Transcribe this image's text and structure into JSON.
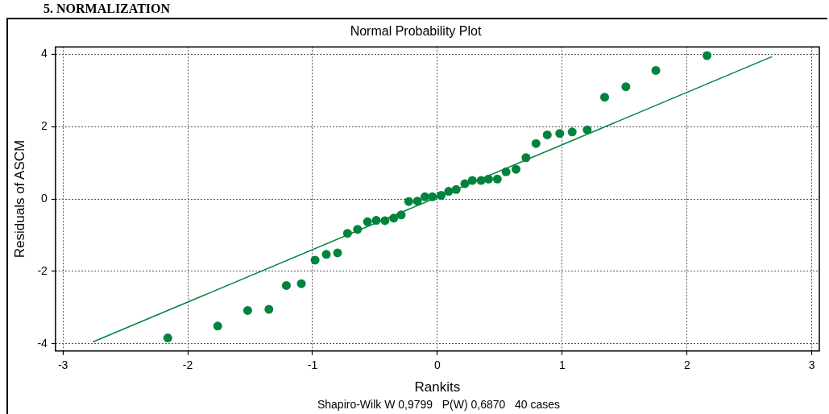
{
  "chart_data": {
    "type": "scatter",
    "title": "Normal Probability Plot",
    "xlabel": "Rankits",
    "ylabel": "Residuals of ASCM",
    "annotations": [
      "5. NORMALIZATION",
      "Shapiro-Wilk W 0,9799   P(W) 0,6870   40 cases"
    ],
    "xlim": [
      -3.06,
      3.06
    ],
    "ylim": [
      -4.2,
      4.2
    ],
    "xticks": [
      -3,
      -2,
      -1,
      0,
      1,
      2,
      3
    ],
    "yticks": [
      -4,
      -2,
      0,
      2,
      4
    ],
    "grid": true,
    "series": [
      {
        "color": "#00843d",
        "marker": "circle",
        "x": [
          -2.16,
          -1.76,
          -1.52,
          -1.35,
          -1.21,
          -1.09,
          -0.98,
          -0.89,
          -0.8,
          -0.72,
          -0.64,
          -0.56,
          -0.49,
          -0.42,
          -0.35,
          -0.29,
          -0.23,
          -0.16,
          -0.1,
          -0.04,
          0.03,
          0.09,
          0.15,
          0.22,
          0.28,
          0.35,
          0.41,
          0.48,
          0.55,
          0.63,
          0.71,
          0.79,
          0.88,
          0.98,
          1.08,
          1.2,
          1.34,
          1.51,
          1.75,
          2.16
        ],
        "values": [
          -3.84,
          -3.51,
          -3.08,
          -3.05,
          -2.39,
          -2.34,
          -1.69,
          -1.53,
          -1.49,
          -0.95,
          -0.84,
          -0.63,
          -0.59,
          -0.6,
          -0.53,
          -0.44,
          -0.07,
          -0.06,
          0.06,
          0.06,
          0.1,
          0.21,
          0.26,
          0.42,
          0.51,
          0.51,
          0.55,
          0.55,
          0.75,
          0.82,
          1.14,
          1.53,
          1.77,
          1.81,
          1.85,
          1.91,
          2.81,
          3.1,
          3.55,
          3.96
        ]
      },
      {
        "type": "line",
        "color": "#00843d",
        "marker": "none",
        "x": [
          -2.76,
          2.68
        ],
        "values": [
          -3.95,
          3.93
        ]
      }
    ]
  }
}
